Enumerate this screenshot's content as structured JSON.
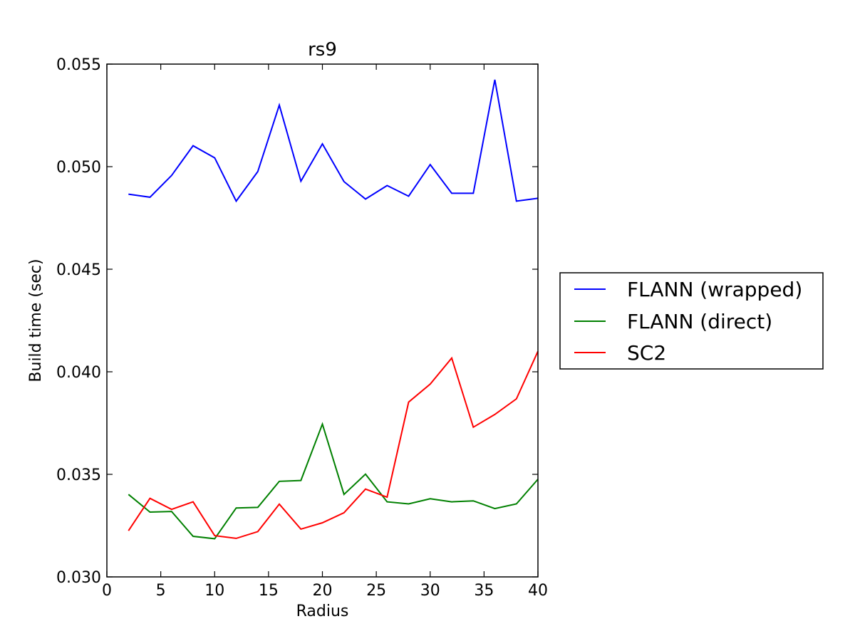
{
  "chart_data": {
    "type": "line",
    "title": "rs9",
    "xlabel": "Radius",
    "ylabel": "Build time (sec)",
    "xlim": [
      0,
      40
    ],
    "ylim": [
      0.03,
      0.055
    ],
    "xticks": [
      0,
      5,
      10,
      15,
      20,
      25,
      30,
      35,
      40
    ],
    "xtick_labels": [
      "0",
      "5",
      "10",
      "15",
      "20",
      "25",
      "30",
      "35",
      "40"
    ],
    "yticks": [
      0.03,
      0.035,
      0.04,
      0.045,
      0.05,
      0.055
    ],
    "ytick_labels": [
      "0.030",
      "0.035",
      "0.040",
      "0.045",
      "0.050",
      "0.055"
    ],
    "grid": false,
    "legend_position": "outside-right",
    "x": [
      2,
      4,
      6,
      8,
      10,
      12,
      14,
      16,
      18,
      20,
      22,
      24,
      26,
      28,
      30,
      32,
      34,
      36,
      38,
      40
    ],
    "series": [
      {
        "name": "FLANN (wrapped)",
        "color": "#0000ff",
        "values": [
          0.04866,
          0.04851,
          0.04957,
          0.05102,
          0.05043,
          0.04832,
          0.04976,
          0.053,
          0.04929,
          0.05111,
          0.04927,
          0.04842,
          0.04908,
          0.04856,
          0.0501,
          0.0487,
          0.0487,
          0.05424,
          0.04832,
          0.04846
        ]
      },
      {
        "name": "FLANN (direct)",
        "color": "#008000",
        "values": [
          0.03402,
          0.03316,
          0.03319,
          0.03198,
          0.03186,
          0.03336,
          0.03339,
          0.03466,
          0.0347,
          0.03745,
          0.03402,
          0.03501,
          0.03366,
          0.03356,
          0.03381,
          0.03366,
          0.03371,
          0.03333,
          0.03356,
          0.03476
        ]
      },
      {
        "name": "SC2",
        "color": "#ff0000",
        "values": [
          0.03225,
          0.03383,
          0.03329,
          0.03366,
          0.03201,
          0.03188,
          0.03221,
          0.03355,
          0.03233,
          0.03264,
          0.03313,
          0.03428,
          0.03389,
          0.03852,
          0.0394,
          0.04067,
          0.0373,
          0.03792,
          0.03868,
          0.041
        ]
      }
    ]
  }
}
